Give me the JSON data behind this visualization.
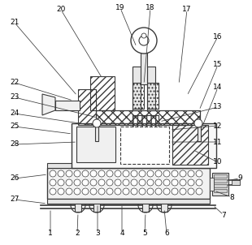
{
  "fig_width": 3.1,
  "fig_height": 3.02,
  "dpi": 100,
  "bg_color": "#ffffff",
  "line_color": "#3a3a3a"
}
